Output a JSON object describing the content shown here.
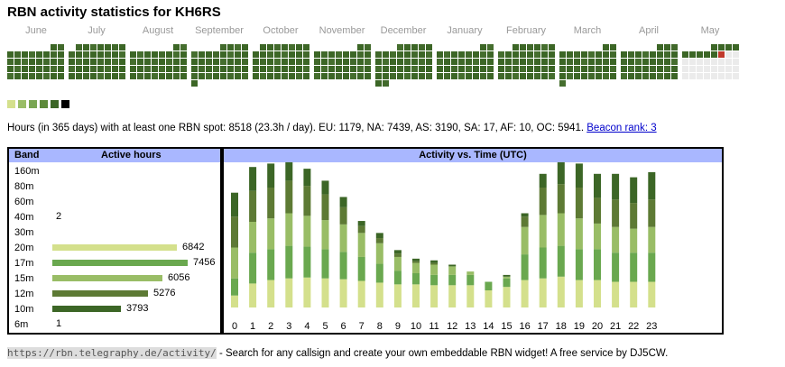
{
  "title": "RBN activity statistics for KH6RS",
  "months": [
    "June",
    "July",
    "August",
    "September",
    "October",
    "November",
    "December",
    "January",
    "February",
    "March",
    "April",
    "May"
  ],
  "colors": {
    "heat": [
      "#ebebeb",
      "#d4e08c",
      "#99bd66",
      "#6b9b46",
      "#5a7a34",
      "#3c6626"
    ],
    "legend": [
      "#d4e08c",
      "#99bd66",
      "#79a653",
      "#5d8a3a",
      "#3c6626",
      "#000000"
    ],
    "highlight": "#c0392b",
    "header_bg": "#a9b7ff",
    "bands": {
      "20m": "#d4e08c",
      "17m": "#6aa84f",
      "15m": "#99bd66",
      "12m": "#5d7a34",
      "10m": "#3c6626"
    }
  },
  "summary": {
    "text": "Hours (in 365 days) with at least one RBN spot: 8518 (23.3h / day). EU: 1179, NA: 7439, AS: 3190, SA: 17, AF: 10, OC: 5941.",
    "link": "Beacon rank: 3"
  },
  "band_table": {
    "header_band": "Band",
    "header_hours": "Active hours",
    "rows": [
      {
        "band": "160m",
        "hours": ""
      },
      {
        "band": "80m",
        "hours": ""
      },
      {
        "band": "60m",
        "hours": ""
      },
      {
        "band": "40m",
        "hours": "2"
      },
      {
        "band": "30m",
        "hours": ""
      },
      {
        "band": "20m",
        "hours": "6842"
      },
      {
        "band": "17m",
        "hours": "7456"
      },
      {
        "band": "15m",
        "hours": "6056"
      },
      {
        "band": "12m",
        "hours": "5276"
      },
      {
        "band": "10m",
        "hours": "3793"
      },
      {
        "band": "6m",
        "hours": "1"
      }
    ]
  },
  "time_chart_title": "Activity vs. Time (UTC)",
  "chart_data": {
    "type": "bar",
    "title": "Activity vs. Time (UTC)",
    "stacked": true,
    "categories": [
      "0",
      "1",
      "2",
      "3",
      "4",
      "5",
      "6",
      "7",
      "8",
      "9",
      "10",
      "11",
      "12",
      "13",
      "14",
      "15",
      "16",
      "17",
      "18",
      "19",
      "20",
      "21",
      "22",
      "23"
    ],
    "series": [
      {
        "band": "20m",
        "color": "#d4e08c",
        "values": [
          14,
          28,
          32,
          34,
          35,
          34,
          33,
          31,
          29,
          27,
          27,
          26,
          26,
          26,
          20,
          24,
          32,
          34,
          36,
          32,
          32,
          30,
          30,
          30
        ]
      },
      {
        "band": "17m",
        "color": "#6aa84f",
        "values": [
          20,
          36,
          36,
          38,
          36,
          34,
          32,
          28,
          22,
          16,
          13,
          12,
          12,
          12,
          10,
          10,
          30,
          36,
          36,
          36,
          36,
          34,
          34,
          34
        ]
      },
      {
        "band": "15m",
        "color": "#99bd66",
        "values": [
          36,
          36,
          36,
          38,
          36,
          34,
          32,
          28,
          24,
          16,
          12,
          12,
          10,
          4,
          0,
          2,
          32,
          38,
          38,
          36,
          30,
          30,
          28,
          30
        ]
      },
      {
        "band": "12m",
        "color": "#5d7a34",
        "values": [
          36,
          36,
          36,
          38,
          35,
          30,
          20,
          8,
          6,
          4,
          2,
          2,
          0,
          0,
          0,
          0,
          12,
          32,
          34,
          36,
          30,
          32,
          30,
          32
        ]
      },
      {
        "band": "10m",
        "color": "#3c6626",
        "values": [
          28,
          28,
          28,
          24,
          20,
          16,
          12,
          6,
          6,
          4,
          3,
          3,
          2,
          0,
          0,
          2,
          4,
          16,
          26,
          28,
          28,
          30,
          30,
          32
        ]
      }
    ]
  },
  "footer": {
    "url": "https://rbn.telegraphy.de/activity/",
    "text": " - Search for any callsign and create your own embeddable RBN widget! A free service by DJ5CW."
  }
}
